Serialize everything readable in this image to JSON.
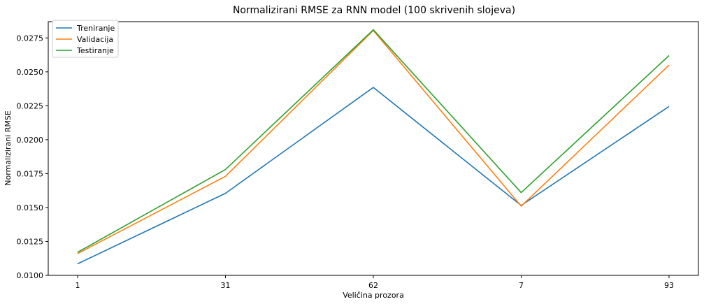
{
  "chart_data": {
    "type": "line",
    "title": "Normalizirani RMSE za RNN model (100 skrivenih slojeva)",
    "xlabel": "Veličina prozora",
    "ylabel": "Normalizirani RMSE",
    "categories": [
      "1",
      "31",
      "62",
      "7",
      "93"
    ],
    "ylim": [
      0.01,
      0.0287
    ],
    "yticks": [
      "0.0100",
      "0.0125",
      "0.0150",
      "0.0175",
      "0.0200",
      "0.0225",
      "0.0250",
      "0.0275"
    ],
    "grid": false,
    "legend_position": "top-left",
    "series": [
      {
        "name": "Treniranje",
        "color": "#1f77b4",
        "values": [
          0.01085,
          0.01605,
          0.02385,
          0.01515,
          0.02245
        ]
      },
      {
        "name": "Validacija",
        "color": "#ff7f0e",
        "values": [
          0.0116,
          0.0173,
          0.02805,
          0.0151,
          0.0255
        ]
      },
      {
        "name": "Testiranje",
        "color": "#2ca02c",
        "values": [
          0.0117,
          0.0178,
          0.0281,
          0.0161,
          0.0262
        ]
      }
    ]
  }
}
